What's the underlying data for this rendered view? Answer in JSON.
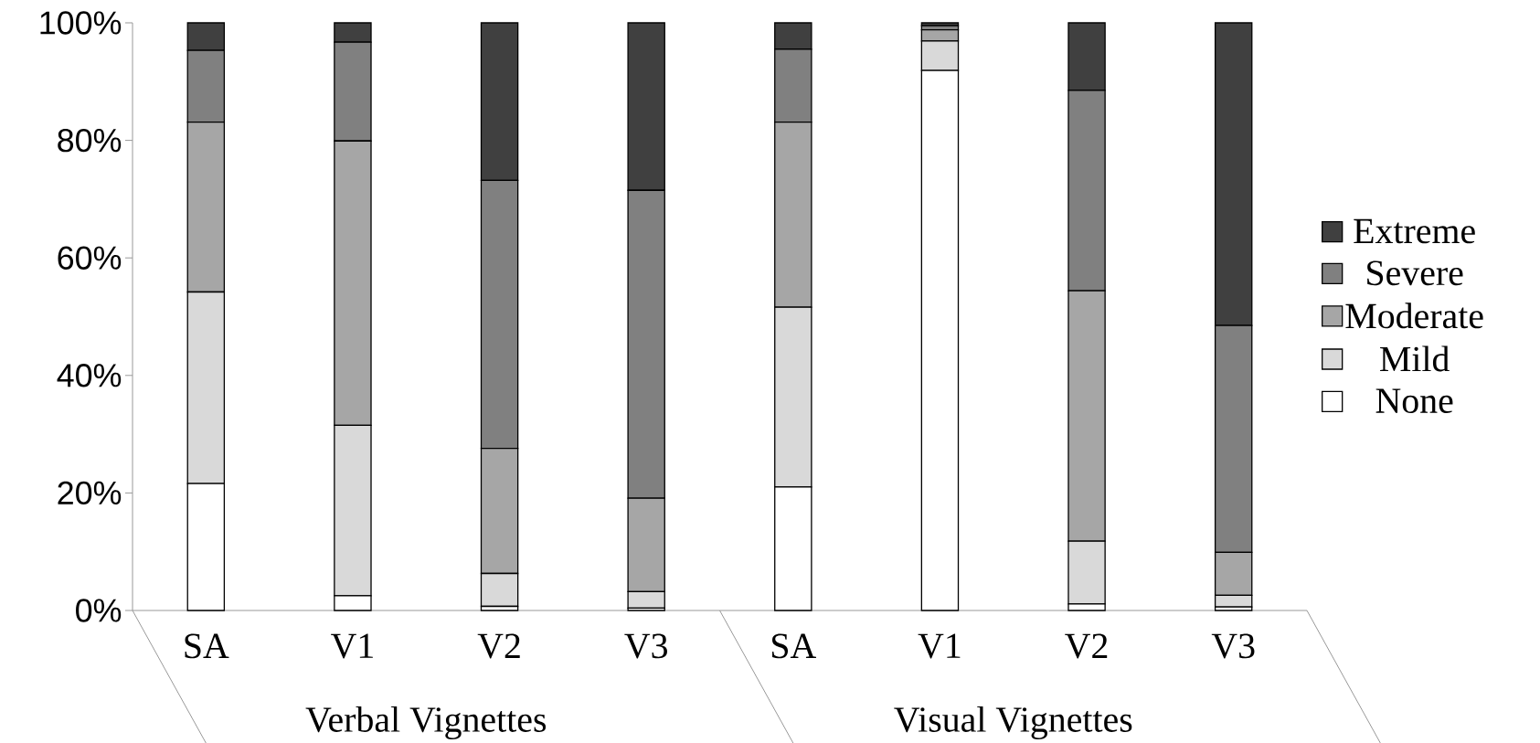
{
  "chart_data": {
    "type": "bar",
    "stacked": true,
    "categories": [
      "SA",
      "V1",
      "V2",
      "V3",
      "SA",
      "V1",
      "V2",
      "V3"
    ],
    "series": [
      {
        "name": "None",
        "color": "#ffffff",
        "values": [
          21.6,
          2.5,
          0.7,
          0.4,
          21.0,
          91.9,
          1.1,
          0.6
        ]
      },
      {
        "name": "Mild",
        "color": "#d9d9d9",
        "values": [
          32.6,
          29.0,
          5.6,
          2.8,
          30.6,
          5.0,
          10.7,
          2.0
        ]
      },
      {
        "name": "Moderate",
        "color": "#a6a6a6",
        "values": [
          28.9,
          48.4,
          21.3,
          15.9,
          31.5,
          1.9,
          42.6,
          7.3
        ]
      },
      {
        "name": "Severe",
        "color": "#808080",
        "values": [
          12.2,
          16.8,
          45.6,
          52.4,
          12.4,
          0.7,
          34.1,
          38.6
        ]
      },
      {
        "name": "Extreme",
        "color": "#404040",
        "values": [
          4.7,
          3.3,
          26.8,
          28.5,
          4.5,
          0.5,
          11.5,
          51.5
        ]
      }
    ],
    "ylim": [
      0,
      100
    ],
    "yticks": [
      {
        "value": 0,
        "label": "0%"
      },
      {
        "value": 20,
        "label": "20%"
      },
      {
        "value": 40,
        "label": "40%"
      },
      {
        "value": 60,
        "label": "60%"
      },
      {
        "value": 80,
        "label": "80%"
      },
      {
        "value": 100,
        "label": "100%"
      }
    ],
    "legend": "right",
    "annotations": [
      "Verbal Vignettes",
      "Visual Vignettes"
    ]
  }
}
